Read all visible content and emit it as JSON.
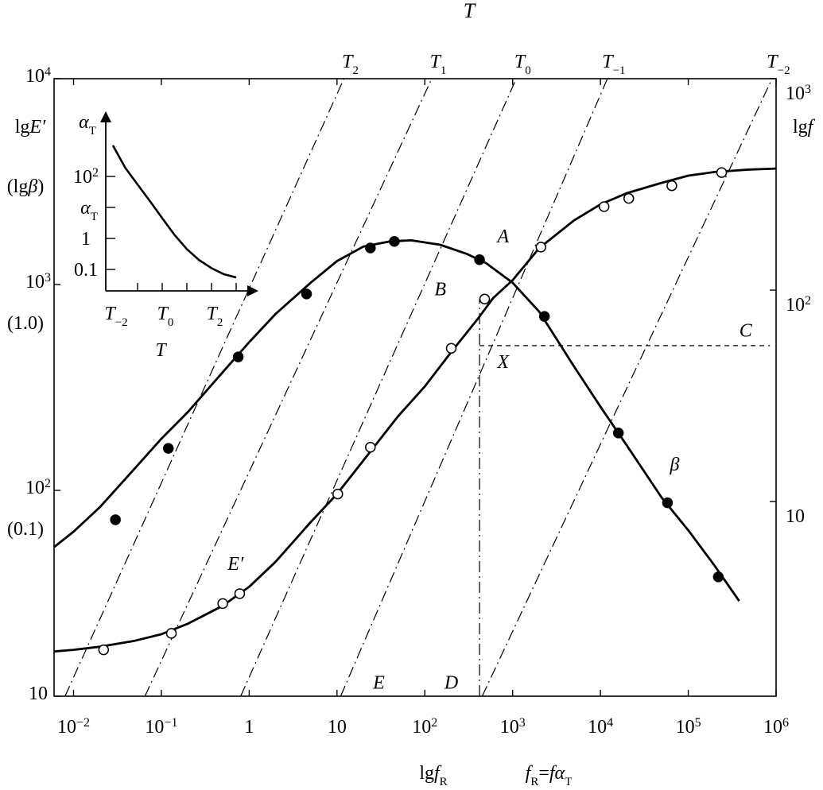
{
  "chart_data": {
    "type": "line",
    "title": "T",
    "x_axis": {
      "label_prefix": "lg",
      "label_symbol": "f",
      "label_sub": "R",
      "definition_lhs": "f",
      "definition_lhs_sub": "R",
      "definition_rhs": "fα",
      "definition_rhs_sub": "T",
      "scale": "log",
      "range": [
        0.006,
        1000000
      ],
      "ticks": [
        {
          "value": 0.01,
          "base": "10",
          "exp": "−2"
        },
        {
          "value": 0.1,
          "base": "10",
          "exp": "−1"
        },
        {
          "value": 1,
          "base": "1",
          "exp": ""
        },
        {
          "value": 10,
          "base": "10",
          "exp": ""
        },
        {
          "value": 100,
          "base": "10",
          "exp": "2"
        },
        {
          "value": 1000,
          "base": "10",
          "exp": "3"
        },
        {
          "value": 10000,
          "base": "10",
          "exp": "4"
        },
        {
          "value": 100000,
          "base": "10",
          "exp": "5"
        },
        {
          "value": 1000000,
          "base": "10",
          "exp": "6"
        }
      ]
    },
    "left_axis": {
      "label": "lgE′",
      "label_alt": "(lgβ)",
      "scale": "log",
      "range": [
        10,
        10000
      ],
      "ticks": [
        {
          "value": 10000,
          "base": "10",
          "exp": "4",
          "alt": ""
        },
        {
          "value": 1000,
          "base": "10",
          "exp": "3",
          "alt": "(1.0)"
        },
        {
          "value": 100,
          "base": "10",
          "exp": "2",
          "alt": "(0.1)"
        },
        {
          "value": 10,
          "base": "10",
          "exp": "",
          "alt": ""
        }
      ]
    },
    "right_axis": {
      "label": "lgf",
      "scale": "log",
      "ticks": [
        {
          "value": 1000,
          "base": "10",
          "exp": "3"
        },
        {
          "value": 100,
          "base": "10",
          "exp": "2"
        },
        {
          "value": 10,
          "base": "10",
          "exp": ""
        }
      ],
      "v_at_bottom": 1.2,
      "v_at_top": 1000
    },
    "isotherms": [
      {
        "label": "T",
        "sub": "2",
        "x_at_bottom": 0.008,
        "x_at_top": 12
      },
      {
        "label": "T",
        "sub": "1",
        "x_at_bottom": 0.065,
        "x_at_top": 120
      },
      {
        "label": "T",
        "sub": "0",
        "x_at_bottom": 0.8,
        "x_at_top": 1100
      },
      {
        "label": "T",
        "sub": "−1",
        "x_at_bottom": 11,
        "x_at_top": 12000
      },
      {
        "label": "T",
        "sub": "−2",
        "x_at_bottom": 450,
        "x_at_top": 900000
      }
    ],
    "series": [
      {
        "name": "E′",
        "marker": "open",
        "curve": [
          [
            0.006,
            16.5
          ],
          [
            0.01,
            16.8
          ],
          [
            0.02,
            17.4
          ],
          [
            0.05,
            18.6
          ],
          [
            0.1,
            20
          ],
          [
            0.2,
            22.5
          ],
          [
            0.5,
            27.5
          ],
          [
            1,
            34
          ],
          [
            2,
            45
          ],
          [
            5,
            70
          ],
          [
            10,
            96
          ],
          [
            20,
            140
          ],
          [
            50,
            230
          ],
          [
            100,
            320
          ],
          [
            200,
            470
          ],
          [
            400,
            680
          ],
          [
            600,
            860
          ],
          [
            1000,
            1050
          ],
          [
            2000,
            1500
          ],
          [
            5000,
            2050
          ],
          [
            10000,
            2450
          ],
          [
            20000,
            2780
          ],
          [
            50000,
            3120
          ],
          [
            100000,
            3380
          ],
          [
            200000,
            3520
          ],
          [
            500000,
            3620
          ],
          [
            1000000,
            3660
          ]
        ],
        "points": [
          [
            0.022,
            16.8
          ],
          [
            0.13,
            20.2
          ],
          [
            0.5,
            28.2
          ],
          [
            0.78,
            31.5
          ],
          [
            10.2,
            96
          ],
          [
            24,
            162
          ],
          [
            200,
            490
          ],
          [
            480,
            850
          ],
          [
            2100,
            1520
          ],
          [
            11000,
            2390
          ],
          [
            21000,
            2620
          ],
          [
            65000,
            3020
          ],
          [
            240000,
            3500
          ]
        ]
      },
      {
        "name": "β",
        "marker": "filled",
        "curve": [
          [
            0.006,
            53
          ],
          [
            0.01,
            63
          ],
          [
            0.02,
            83
          ],
          [
            0.05,
            128
          ],
          [
            0.1,
            178
          ],
          [
            0.2,
            240
          ],
          [
            0.5,
            375
          ],
          [
            1,
            525
          ],
          [
            2,
            720
          ],
          [
            5,
            1020
          ],
          [
            10,
            1300
          ],
          [
            20,
            1530
          ],
          [
            40,
            1620
          ],
          [
            70,
            1640
          ],
          [
            150,
            1560
          ],
          [
            300,
            1410
          ],
          [
            500,
            1270
          ],
          [
            1000,
            1020
          ],
          [
            2000,
            740
          ],
          [
            5000,
            400
          ],
          [
            10000,
            255
          ],
          [
            20000,
            165
          ],
          [
            50000,
            92
          ],
          [
            100000,
            64
          ],
          [
            200000,
            43
          ],
          [
            380000,
            29
          ]
        ],
        "points": [
          [
            0.03,
            72
          ],
          [
            0.12,
            160
          ],
          [
            0.75,
            445
          ],
          [
            4.5,
            900
          ],
          [
            24,
            1505
          ],
          [
            45,
            1620
          ],
          [
            420,
            1320
          ],
          [
            2300,
            700
          ],
          [
            16000,
            190
          ],
          [
            58000,
            87
          ],
          [
            220000,
            38
          ]
        ]
      }
    ],
    "annotations": [
      {
        "text": "A",
        "x": 780,
        "y": 1600
      },
      {
        "text": "B",
        "x": 150,
        "y": 888
      },
      {
        "text": "C",
        "x": 450000,
        "y": 558
      },
      {
        "text": "D",
        "x": 200,
        "y": 10.9
      },
      {
        "text": "E",
        "x": 30,
        "y": 10.9
      },
      {
        "text": "X",
        "x": 780,
        "y": 393
      }
    ],
    "reference_lines": {
      "vertical_x": 420,
      "vertical_from_y": 10,
      "vertical_to_y": 850,
      "horizontal_y": 505,
      "horizontal_from_x": 420,
      "horizontal_to_x": 850000
    },
    "inset": {
      "type": "line",
      "ylabel": "α",
      "ylabel_sub": "T",
      "xlabel": "T",
      "y_ticks": [
        {
          "value": 100,
          "base": "10",
          "exp": "2"
        },
        {
          "value": 10,
          "label": "α",
          "sub": "T"
        },
        {
          "value": 1,
          "base": "1",
          "exp": ""
        },
        {
          "value": 0.1,
          "base": "0.1",
          "exp": ""
        }
      ],
      "x_ticks": [
        {
          "value": -2,
          "label": "T",
          "sub": "−2"
        },
        {
          "value": 0,
          "label": "T",
          "sub": "0"
        },
        {
          "value": 2,
          "label": "T",
          "sub": "2"
        }
      ],
      "curve": [
        [
          -2,
          1000
        ],
        [
          -1.5,
          190
        ],
        [
          -1,
          55
        ],
        [
          -0.5,
          16
        ],
        [
          0,
          4.5
        ],
        [
          0.5,
          1.3
        ],
        [
          1,
          0.45
        ],
        [
          1.5,
          0.2
        ],
        [
          2,
          0.11
        ],
        [
          2.5,
          0.07
        ],
        [
          3,
          0.055
        ]
      ]
    }
  }
}
